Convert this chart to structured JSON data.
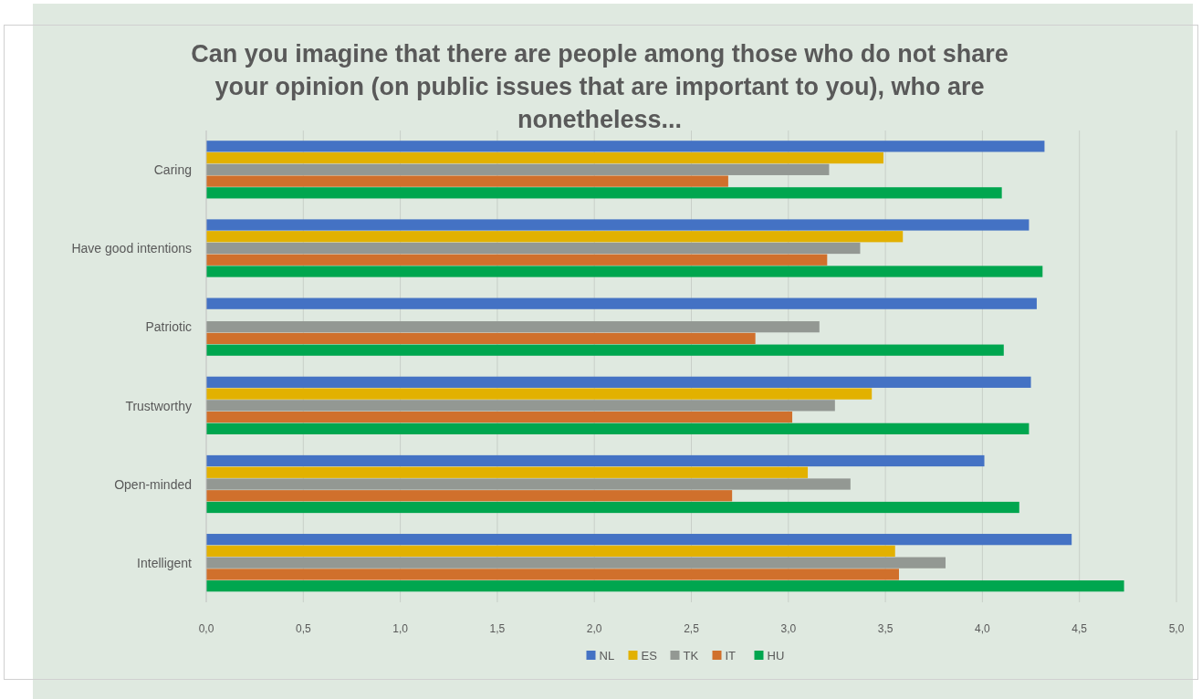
{
  "chart_data": {
    "type": "bar",
    "orientation": "horizontal",
    "title": "Can you imagine that there are people among those who do not share your opinion (on public issues that are important to you), who are nonetheless...",
    "categories": [
      "Caring",
      "Have good intentions",
      "Patriotic",
      "Trustworthy",
      "Open-minded",
      "Intelligent"
    ],
    "series": [
      {
        "name": "NL",
        "color": "#4472c4",
        "values": [
          4.32,
          4.24,
          4.28,
          4.25,
          4.01,
          4.46
        ]
      },
      {
        "name": "ES",
        "color": "#e2b100",
        "values": [
          3.49,
          3.59,
          null,
          3.43,
          3.1,
          3.55
        ]
      },
      {
        "name": "TK",
        "color": "#939893",
        "values": [
          3.21,
          3.37,
          3.16,
          3.24,
          3.32,
          3.81
        ]
      },
      {
        "name": "IT",
        "color": "#d0702c",
        "values": [
          2.69,
          3.2,
          2.83,
          3.02,
          2.71,
          3.57
        ]
      },
      {
        "name": "HU",
        "color": "#00a64f",
        "values": [
          4.1,
          4.31,
          4.11,
          4.24,
          4.19,
          4.73
        ]
      }
    ],
    "xlim": [
      0,
      5
    ],
    "xticks": [
      {
        "value": 0,
        "label": "0,0"
      },
      {
        "value": 0.5,
        "label": "0,5"
      },
      {
        "value": 1,
        "label": "1,0"
      },
      {
        "value": 1.5,
        "label": "1,5"
      },
      {
        "value": 2,
        "label": "2,0"
      },
      {
        "value": 2.5,
        "label": "2,5"
      },
      {
        "value": 3,
        "label": "3,0"
      },
      {
        "value": 3.5,
        "label": "3,5"
      },
      {
        "value": 4,
        "label": "4,0"
      },
      {
        "value": 4.5,
        "label": "4,5"
      },
      {
        "value": 5,
        "label": "5,0"
      }
    ],
    "grid": "x",
    "legend": "bottom"
  }
}
